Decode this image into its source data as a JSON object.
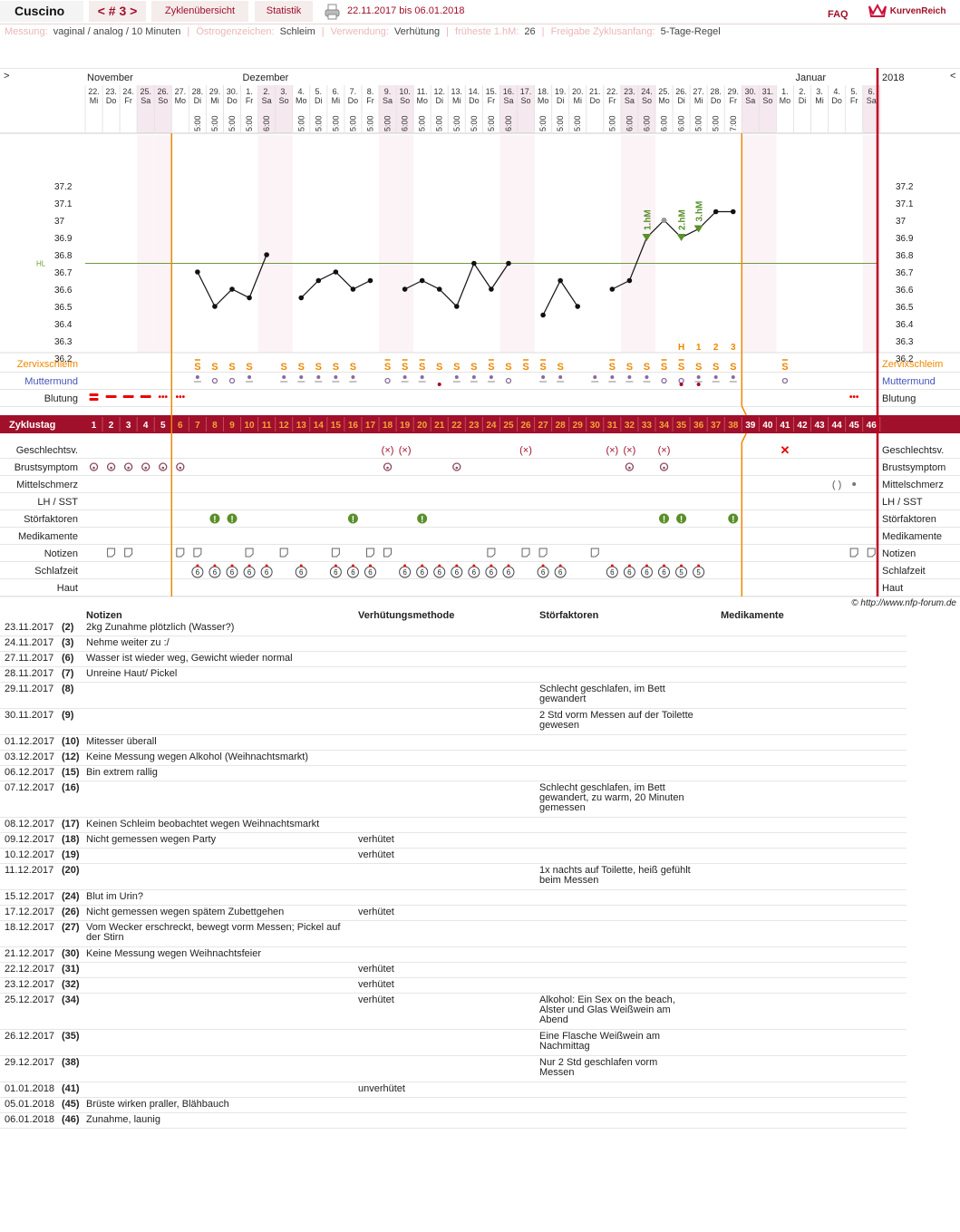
{
  "header": {
    "title": "Cuscino",
    "cycle_tab": "< # 3 >",
    "overview_tab": "Zyklenübersicht",
    "stats_tab": "Statistik",
    "print_icon": "printer-icon",
    "date_range": "22.11.2017 bis 06.01.2018",
    "faq": "FAQ",
    "logo_text": "KurvenReich",
    "logo_icon": "crown-icon"
  },
  "info": {
    "measurement_label": "Messung:",
    "measurement": "vaginal / analog / 10 Minuten",
    "estrogen_label": "Östrogenzeichen:",
    "estrogen": "Schleim",
    "usage_label": "Verwendung:",
    "usage": "Verhütung",
    "earliest_label": "früheste 1.hM:",
    "earliest": "26",
    "release_label": "Freigabe Zyklusanfang:",
    "release": "5-Tage-Regel"
  },
  "chart_data": {
    "type": "line",
    "title": "",
    "ylim": [
      36.1,
      37.3
    ],
    "y_ticks": [
      "37.2",
      "37.1",
      "37",
      "36.9",
      "36.8",
      "36.7",
      "36.6",
      "36.5",
      "36.4",
      "36.3",
      "36.2"
    ],
    "cover_line": 36.75,
    "cover_label": "HL",
    "months": [
      {
        "label": "November",
        "day": 1
      },
      {
        "label": "Dezember",
        "day": 10
      },
      {
        "label": "Januar",
        "day": 42
      }
    ],
    "year_label": "2018",
    "nav_left": ">",
    "nav_right": "<",
    "days": [
      {
        "d": "22.",
        "w": "Mi"
      },
      {
        "d": "23.",
        "w": "Do"
      },
      {
        "d": "24.",
        "w": "Fr"
      },
      {
        "d": "25.",
        "w": "Sa"
      },
      {
        "d": "26.",
        "w": "So"
      },
      {
        "d": "27.",
        "w": "Mo"
      },
      {
        "d": "28.",
        "w": "Di"
      },
      {
        "d": "29.",
        "w": "Mi"
      },
      {
        "d": "30.",
        "w": "Do"
      },
      {
        "d": "1.",
        "w": "Fr"
      },
      {
        "d": "2.",
        "w": "Sa"
      },
      {
        "d": "3.",
        "w": "So"
      },
      {
        "d": "4.",
        "w": "Mo"
      },
      {
        "d": "5.",
        "w": "Di"
      },
      {
        "d": "6.",
        "w": "Mi"
      },
      {
        "d": "7.",
        "w": "Do"
      },
      {
        "d": "8.",
        "w": "Fr"
      },
      {
        "d": "9.",
        "w": "Sa"
      },
      {
        "d": "10.",
        "w": "So"
      },
      {
        "d": "11.",
        "w": "Mo"
      },
      {
        "d": "12.",
        "w": "Di"
      },
      {
        "d": "13.",
        "w": "Mi"
      },
      {
        "d": "14.",
        "w": "Do"
      },
      {
        "d": "15.",
        "w": "Fr"
      },
      {
        "d": "16.",
        "w": "Sa"
      },
      {
        "d": "17.",
        "w": "So"
      },
      {
        "d": "18.",
        "w": "Mo"
      },
      {
        "d": "19.",
        "w": "Di"
      },
      {
        "d": "20.",
        "w": "Mi"
      },
      {
        "d": "21.",
        "w": "Do"
      },
      {
        "d": "22.",
        "w": "Fr"
      },
      {
        "d": "23.",
        "w": "Sa"
      },
      {
        "d": "24.",
        "w": "So"
      },
      {
        "d": "25.",
        "w": "Mo"
      },
      {
        "d": "26.",
        "w": "Di"
      },
      {
        "d": "27.",
        "w": "Mi"
      },
      {
        "d": "28.",
        "w": "Do"
      },
      {
        "d": "29.",
        "w": "Fr"
      },
      {
        "d": "30.",
        "w": "Sa"
      },
      {
        "d": "31.",
        "w": "So"
      },
      {
        "d": "1.",
        "w": "Mo"
      },
      {
        "d": "2.",
        "w": "Di"
      },
      {
        "d": "3.",
        "w": "Mi"
      },
      {
        "d": "4.",
        "w": "Do"
      },
      {
        "d": "5.",
        "w": "Fr"
      },
      {
        "d": "6.",
        "w": "Sa"
      }
    ],
    "times": {
      "7": "5:00",
      "8": "5:00",
      "9": "5:00",
      "10": "5:00",
      "11": "6:00",
      "13": "5:00",
      "14": "5:00",
      "15": "5:00",
      "16": "5:00",
      "17": "5:00",
      "18": "5:00",
      "19": "6:00",
      "20": "5:00",
      "21": "5:00",
      "22": "5:00",
      "23": "5:00",
      "24": "5:00",
      "25": "6:00",
      "27": "5:00",
      "28": "5:00",
      "29": "5:00",
      "31": "5:00",
      "32": "6:00",
      "33": "6:00",
      "34": "6:00",
      "35": "6:00",
      "36": "5:00",
      "37": "5:00",
      "38": "7:00"
    },
    "series": [
      {
        "values": [
          null,
          null,
          null,
          null,
          null,
          null,
          36.7,
          36.5,
          36.6,
          36.55,
          36.8,
          null,
          36.55,
          36.65,
          36.7,
          36.6,
          36.65,
          null,
          36.6,
          36.65,
          36.6,
          36.5,
          36.75,
          36.6,
          36.75,
          null,
          36.45,
          36.65,
          36.5,
          null,
          36.6,
          36.65,
          36.9,
          37.0,
          36.9,
          36.95,
          37.05,
          37.05,
          null,
          null,
          null,
          null,
          null,
          null,
          null,
          null
        ]
      }
    ],
    "excluded_days": [
      34
    ],
    "hm_markers": [
      {
        "day": 33,
        "label": "1.hM"
      },
      {
        "day": 35,
        "label": "2.hM"
      },
      {
        "day": 36,
        "label": "3.hM"
      }
    ],
    "peak_labels": [
      {
        "day": 35,
        "label": "H"
      },
      {
        "day": 36,
        "label": "1"
      },
      {
        "day": 37,
        "label": "2"
      },
      {
        "day": 38,
        "label": "3"
      }
    ],
    "cycle_start_day": 6,
    "cycle_end_day": 38
  },
  "rows": {
    "cervical_mucus": "Zervixschleim",
    "cervix": "Muttermund",
    "bleeding": "Blutung",
    "cycle_day": "Zyklustag",
    "intercourse": "Geschlechtsv.",
    "breast": "Brustsymptom",
    "pain": "Mittelschmerz",
    "lh": "LH / SST",
    "disturb": "Störfaktoren",
    "meds": "Medikamente",
    "notes": "Notizen",
    "sleep": "Schlafzeit",
    "skin": "Haut"
  },
  "marks": {
    "mucus_plus": [
      7,
      18,
      19,
      20,
      24,
      26,
      27,
      31,
      34,
      35,
      41
    ],
    "mucus_s": [
      8,
      9,
      10,
      12,
      13,
      14,
      15,
      16,
      21,
      22,
      23,
      25,
      28,
      32,
      33,
      36,
      37,
      38
    ],
    "mucus_icon": "mucus-symbol",
    "cervix_closed": [
      7,
      10,
      12,
      13,
      14,
      15,
      16,
      19,
      20,
      22,
      23,
      24,
      27,
      28,
      30,
      31,
      32,
      33,
      36,
      37,
      38
    ],
    "cervix_open": [
      8,
      9,
      18,
      25,
      34,
      35,
      41
    ],
    "cervix_low": [
      21,
      35,
      36
    ],
    "bleeding_heavy": [
      1
    ],
    "bleeding_medium": [
      2,
      3,
      4
    ],
    "bleeding_light": [
      5,
      6,
      45
    ],
    "intercourse": [
      18,
      19,
      26,
      31,
      32,
      34
    ],
    "intercourse_unprotected": [
      41
    ],
    "breast": [
      1,
      2,
      3,
      4,
      5,
      6,
      18,
      22,
      32,
      34
    ],
    "pain_right": [
      44
    ],
    "pain_left": [
      45
    ],
    "disturb": [
      8,
      9,
      16,
      20,
      34,
      35,
      38
    ],
    "notes": [
      2,
      3,
      6,
      7,
      10,
      12,
      15,
      17,
      18,
      24,
      26,
      27,
      30,
      45,
      46
    ],
    "sleep": {
      "7": "6",
      "8": "6",
      "9": "6",
      "10": "6",
      "11": "6",
      "13": "6",
      "15": "6",
      "16": "6",
      "17": "6",
      "19": "6",
      "20": "6",
      "21": "6",
      "22": "6",
      "23": "6",
      "24": "6",
      "25": "6",
      "27": "6",
      "28": "6",
      "31": "6",
      "32": "6",
      "33": "6",
      "34": "6",
      "35": "5",
      "36": "5"
    }
  },
  "copyright": "© http://www.nfp-forum.de",
  "notes_table": {
    "headers": {
      "note": "Notizen",
      "method": "Verhütungsmethode",
      "disturb": "Störfaktoren",
      "meds": "Medikamente"
    },
    "rows": [
      {
        "date": "23.11.2017",
        "day": "(2)",
        "note": "2kg Zunahme plötzlich (Wasser?)",
        "method": "",
        "disturb": "",
        "meds": "",
        "h": 16
      },
      {
        "date": "24.11.2017",
        "day": "(3)",
        "note": "Nehme weiter zu :/",
        "method": "",
        "disturb": "",
        "meds": "",
        "h": 16
      },
      {
        "date": "27.11.2017",
        "day": "(6)",
        "note": "Wasser ist wieder weg, Gewicht wieder normal",
        "method": "",
        "disturb": "",
        "meds": "",
        "h": 16
      },
      {
        "date": "28.11.2017",
        "day": "(7)",
        "note": "Unreine Haut/ Pickel",
        "method": "",
        "disturb": "",
        "meds": "",
        "h": 16
      },
      {
        "date": "29.11.2017",
        "day": "(8)",
        "note": "",
        "method": "",
        "disturb": "Schlecht geschlafen, im Bett gewandert",
        "meds": "",
        "h": 28
      },
      {
        "date": "30.11.2017",
        "day": "(9)",
        "note": "",
        "method": "",
        "disturb": "2 Std vorm Messen auf der Toilette gewesen",
        "meds": "",
        "h": 28
      },
      {
        "date": "01.12.2017",
        "day": "(10)",
        "note": "Mitesser überall",
        "method": "",
        "disturb": "",
        "meds": "",
        "h": 16
      },
      {
        "date": "03.12.2017",
        "day": "(12)",
        "note": "Keine Messung wegen Alkohol (Weihnachtsmarkt)",
        "method": "",
        "disturb": "",
        "meds": "",
        "h": 16
      },
      {
        "date": "06.12.2017",
        "day": "(15)",
        "note": "Bin extrem rallig",
        "method": "",
        "disturb": "",
        "meds": "",
        "h": 16
      },
      {
        "date": "07.12.2017",
        "day": "(16)",
        "note": "",
        "method": "",
        "disturb": "Schlecht geschlafen, im Bett gewandert, zu warm, 20 Minuten gemessen",
        "meds": "",
        "h": 39
      },
      {
        "date": "08.12.2017",
        "day": "(17)",
        "note": "Keinen Schleim beobachtet wegen Weihnachtsmarkt",
        "method": "",
        "disturb": "",
        "meds": "",
        "h": 16
      },
      {
        "date": "09.12.2017",
        "day": "(18)",
        "note": "Nicht gemessen wegen Party",
        "method": "verhütet",
        "disturb": "",
        "meds": "",
        "h": 16
      },
      {
        "date": "10.12.2017",
        "day": "(19)",
        "note": "",
        "method": "verhütet",
        "disturb": "",
        "meds": "",
        "h": 16
      },
      {
        "date": "11.12.2017",
        "day": "(20)",
        "note": "",
        "method": "",
        "disturb": "1x nachts auf Toilette, heiß gefühlt beim Messen",
        "meds": "",
        "h": 28
      },
      {
        "date": "15.12.2017",
        "day": "(24)",
        "note": "Blut im Urin?",
        "method": "",
        "disturb": "",
        "meds": "",
        "h": 16
      },
      {
        "date": "17.12.2017",
        "day": "(26)",
        "note": "Nicht gemessen wegen spätem Zubettgehen",
        "method": "verhütet",
        "disturb": "",
        "meds": "",
        "h": 16
      },
      {
        "date": "18.12.2017",
        "day": "(27)",
        "note": "Vom Wecker erschreckt, bewegt vorm Messen; Pickel auf der Stirn",
        "method": "",
        "disturb": "",
        "meds": "",
        "h": 28
      },
      {
        "date": "21.12.2017",
        "day": "(30)",
        "note": "Keine Messung wegen Weihnachtsfeier",
        "method": "",
        "disturb": "",
        "meds": "",
        "h": 16
      },
      {
        "date": "22.12.2017",
        "day": "(31)",
        "note": "",
        "method": "verhütet",
        "disturb": "",
        "meds": "",
        "h": 16
      },
      {
        "date": "23.12.2017",
        "day": "(32)",
        "note": "",
        "method": "verhütet",
        "disturb": "",
        "meds": "",
        "h": 16
      },
      {
        "date": "25.12.2017",
        "day": "(34)",
        "note": "",
        "method": "verhütet",
        "disturb": "Alkohol: Ein Sex on the beach, Alster und Glas Weißwein am Abend",
        "meds": "",
        "h": 39
      },
      {
        "date": "26.12.2017",
        "day": "(35)",
        "note": "",
        "method": "",
        "disturb": "Eine Flasche Weißwein am Nachmittag",
        "meds": "",
        "h": 28
      },
      {
        "date": "29.12.2017",
        "day": "(38)",
        "note": "",
        "method": "",
        "disturb": "Nur 2 Std geschlafen vorm Messen",
        "meds": "",
        "h": 28
      },
      {
        "date": "01.01.2018",
        "day": "(41)",
        "note": "",
        "method": "unverhütet",
        "disturb": "",
        "meds": "",
        "h": 16
      },
      {
        "date": "05.01.2018",
        "day": "(45)",
        "note": "Brüste wirken praller, Blähbauch",
        "method": "",
        "disturb": "",
        "meds": "",
        "h": 16
      },
      {
        "date": "06.01.2018",
        "day": "(46)",
        "note": "Zunahme, launig",
        "method": "",
        "disturb": "",
        "meds": "",
        "h": 16
      }
    ]
  },
  "colors": {
    "brand": "#a0102a",
    "orange": "#ee8800",
    "green": "#5a8f2a",
    "blue": "#4455bb",
    "weekend": "#f5e8ee",
    "grid": "#d9d9d9"
  }
}
